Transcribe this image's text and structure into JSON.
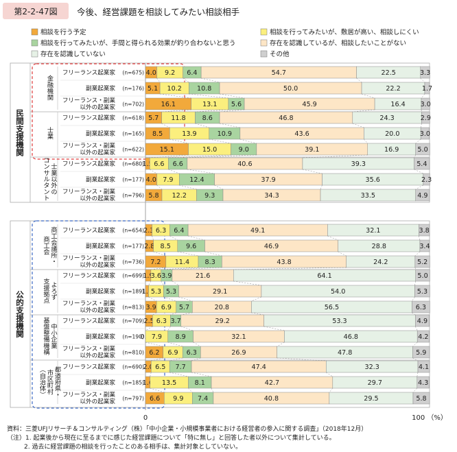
{
  "figure": {
    "label": "第2-2-47図",
    "title": "今後、経営課題を相談してみたい相談相手"
  },
  "legend": [
    {
      "name": "相談を行う予定",
      "color": "#f2a93b"
    },
    {
      "name": "相談を行ってみたいが、敷居が高い、相談しにくい",
      "color": "#fbef7e"
    },
    {
      "name": "相談を行ってみたいが、手間と得られる効果が釣り合わないと思う",
      "color": "#a9d4a0"
    },
    {
      "name": "存在を認識しているが、相談したいことがない",
      "color": "#fde6c6"
    },
    {
      "name": "存在を認識していない",
      "color": "#e6f1e6"
    },
    {
      "name": "その他",
      "color": "#cfcfcf"
    }
  ],
  "groups": [
    {
      "label": "民間支援機関",
      "start": 0,
      "end": 8
    },
    {
      "label": "公的支援機関",
      "start": 9,
      "end": 20
    }
  ],
  "subgroups": [
    {
      "label": "金融機関",
      "start": 0,
      "end": 2
    },
    {
      "label": "士業",
      "start": 3,
      "end": 5
    },
    {
      "label": "士業以外の コンサルタント",
      "start": 6,
      "end": 8
    },
    {
      "label": "商工会議所・ 商工会",
      "start": 9,
      "end": 11
    },
    {
      "label": "よろず 支援拠点",
      "start": 12,
      "end": 14
    },
    {
      "label": "中小企業 基盤整備機構",
      "start": 15,
      "end": 17
    },
    {
      "label": "都道府県・ 市区町村 （自治体）",
      "start": 18,
      "end": 20
    }
  ],
  "chart_data": {
    "type": "bar",
    "orientation": "horizontal",
    "stacked": true,
    "xlim": [
      0,
      100
    ],
    "x_tick_labels": [
      "0",
      "100 （%）"
    ],
    "rows": [
      {
        "label": "フリーランス起業家",
        "n": "(n=675)",
        "values": [
          4.0,
          9.2,
          6.4,
          54.7,
          22.5,
          3.3
        ]
      },
      {
        "label": "副業起業家",
        "n": "(n=176)",
        "values": [
          5.1,
          10.2,
          10.8,
          50.0,
          22.2,
          1.7
        ]
      },
      {
        "label": "フリーランス・副業 以外の起業家",
        "n": "(n=702)",
        "values": [
          16.1,
          13.1,
          5.6,
          45.9,
          16.4,
          3.0
        ]
      },
      {
        "label": "フリーランス起業家",
        "n": "(n=618)",
        "values": [
          5.7,
          11.8,
          8.6,
          46.8,
          24.3,
          2.9
        ]
      },
      {
        "label": "副業起業家",
        "n": "(n=165)",
        "values": [
          8.5,
          13.9,
          10.9,
          43.6,
          20.0,
          3.0
        ]
      },
      {
        "label": "フリーランス・副業 以外の起業家",
        "n": "(n=622)",
        "values": [
          15.1,
          15.0,
          9.0,
          39.1,
          16.9,
          5.0
        ]
      },
      {
        "label": "フリーランス起業家",
        "n": "(n=680)",
        "values": [
          1.5,
          6.6,
          6.6,
          40.6,
          39.3,
          5.4
        ]
      },
      {
        "label": "副業起業家",
        "n": "(n=177)",
        "values": [
          4.0,
          7.9,
          12.4,
          37.9,
          35.6,
          2.3
        ]
      },
      {
        "label": "フリーランス・副業 以外の起業家",
        "n": "(n=796)",
        "values": [
          5.8,
          12.2,
          9.3,
          34.3,
          33.5,
          4.9
        ]
      },
      {
        "label": "フリーランス起業家",
        "n": "(n=654)",
        "values": [
          2.3,
          6.3,
          6.4,
          49.1,
          32.1,
          3.8
        ]
      },
      {
        "label": "副業起業家",
        "n": "(n=177)",
        "values": [
          2.8,
          8.5,
          9.6,
          46.9,
          28.8,
          3.4
        ]
      },
      {
        "label": "フリーランス・副業 以外の起業家",
        "n": "(n=736)",
        "values": [
          7.2,
          11.4,
          8.3,
          43.8,
          24.2,
          5.2
        ]
      },
      {
        "label": "フリーランス起業家",
        "n": "(n=699)",
        "values": [
          1.9,
          3.6,
          3.9,
          21.6,
          64.1,
          5.0
        ]
      },
      {
        "label": "副業起業家",
        "n": "(n=189)",
        "values": [
          1.1,
          5.3,
          5.3,
          29.1,
          54.0,
          5.3
        ]
      },
      {
        "label": "フリーランス・副業 以外の起業家",
        "n": "(n=813)",
        "values": [
          3.9,
          6.9,
          5.7,
          20.8,
          56.5,
          6.3
        ]
      },
      {
        "label": "フリーランス起業家",
        "n": "(n=709)",
        "values": [
          2.5,
          6.3,
          3.7,
          29.2,
          53.3,
          4.9
        ]
      },
      {
        "label": "副業起業家",
        "n": "(n=190)",
        "values": [
          0.0,
          7.9,
          8.9,
          32.1,
          46.8,
          4.2
        ]
      },
      {
        "label": "フリーランス・副業 以外の起業家",
        "n": "(n=810)",
        "values": [
          6.2,
          6.9,
          6.3,
          26.9,
          47.8,
          5.9
        ]
      },
      {
        "label": "フリーランス起業家",
        "n": "(n=690)",
        "values": [
          2.0,
          6.5,
          7.7,
          47.4,
          32.3,
          4.1
        ]
      },
      {
        "label": "副業起業家",
        "n": "(n=185)",
        "values": [
          1.6,
          13.5,
          8.1,
          42.7,
          29.7,
          4.3
        ]
      },
      {
        "label": "フリーランス・副業 以外の起業家",
        "n": "(n=797)",
        "values": [
          6.6,
          9.9,
          7.4,
          40.8,
          29.5,
          5.8
        ]
      }
    ]
  },
  "notes": [
    "資料：三菱UFJリサーチ＆コンサルティング（株）「中小企業・小規模事業者における経営者の参入に関する調査」（2018年12月）",
    "（注）1. 起業後から現在に至るまでに感じた経営課題について「特に無し」と回答した者以外について集計している。",
    "2. 過去に経営課題の相談を行ったことのある相手は、集計対象としていない。"
  ]
}
